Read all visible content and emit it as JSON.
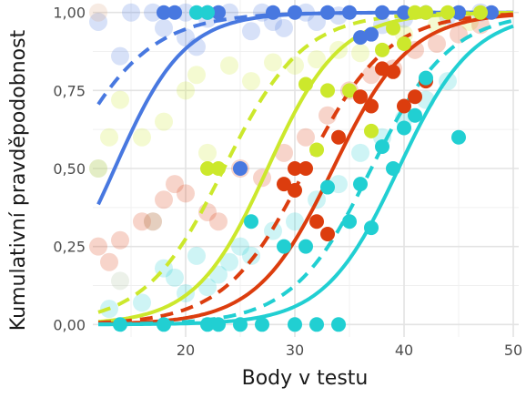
{
  "chart_data": {
    "type": "scatter",
    "title": "",
    "xlabel": "Body v testu",
    "ylabel": "Kumulativní pravděpodobnost",
    "xlim": [
      11.5,
      50.5
    ],
    "ylim": [
      -0.04,
      1.04
    ],
    "x_ticks": [
      20,
      30,
      40,
      50
    ],
    "x_tick_labels": [
      "20",
      "30",
      "40",
      "50"
    ],
    "y_ticks": [
      0,
      0.25,
      0.5,
      0.75,
      1
    ],
    "y_tick_labels": [
      "0,00",
      "0,25",
      "0,50",
      "0,75",
      "1,00"
    ],
    "grid": true,
    "legend": "none",
    "series": [
      {
        "color": "#4878e0",
        "curve_solid": {
          "mid": 13.5,
          "scale": 3.2
        },
        "curve_dashed": {
          "mid": 8.5,
          "scale": 4.0
        },
        "points_solid": [
          [
            18,
            1
          ],
          [
            19,
            1
          ],
          [
            22,
            1
          ],
          [
            23,
            1
          ],
          [
            25,
            0.5
          ],
          [
            28,
            1
          ],
          [
            30,
            1
          ],
          [
            33,
            1
          ],
          [
            35,
            1
          ],
          [
            36,
            0.92
          ],
          [
            37,
            0.93
          ],
          [
            38,
            1
          ],
          [
            40,
            1
          ],
          [
            42,
            1
          ],
          [
            45,
            1
          ],
          [
            48,
            1
          ]
        ],
        "points_faded": [
          [
            12,
            0.97
          ],
          [
            14,
            0.86
          ],
          [
            15,
            1
          ],
          [
            17,
            1
          ],
          [
            18,
            0.95
          ],
          [
            20,
            0.92
          ],
          [
            20,
            1
          ],
          [
            21,
            0.89
          ],
          [
            22,
            0.98
          ],
          [
            24,
            1
          ],
          [
            26,
            0.94
          ],
          [
            27,
            1
          ],
          [
            28,
            0.97
          ],
          [
            29,
            0.95
          ],
          [
            31,
            1
          ],
          [
            32,
            0.97
          ],
          [
            34,
            0.99
          ],
          [
            38,
            0.96
          ],
          [
            40,
            0.98
          ],
          [
            44,
            0.99
          ],
          [
            47,
            1
          ]
        ]
      },
      {
        "color": "#cce82c",
        "curve_solid": {
          "mid": 27.5,
          "scale": 3.3
        },
        "curve_dashed": {
          "mid": 23.5,
          "scale": 3.6
        },
        "points_solid": [
          [
            22,
            0.5
          ],
          [
            23,
            0.5
          ],
          [
            31,
            0.77
          ],
          [
            32,
            0.56
          ],
          [
            33,
            0.75
          ],
          [
            35,
            0.75
          ],
          [
            37,
            0.62
          ],
          [
            38,
            0.88
          ],
          [
            39,
            0.95
          ],
          [
            40,
            0.9
          ],
          [
            41,
            1
          ],
          [
            42,
            1
          ],
          [
            44,
            1
          ],
          [
            47,
            1
          ]
        ],
        "points_faded": [
          [
            12,
            0.5
          ],
          [
            13,
            0.6
          ],
          [
            14,
            0.72
          ],
          [
            16,
            0.6
          ],
          [
            18,
            0.65
          ],
          [
            20,
            0.75
          ],
          [
            21,
            0.8
          ],
          [
            22,
            0.55
          ],
          [
            24,
            0.83
          ],
          [
            26,
            0.78
          ],
          [
            28,
            0.84
          ],
          [
            30,
            0.83
          ],
          [
            32,
            0.85
          ],
          [
            34,
            0.88
          ],
          [
            36,
            0.87
          ],
          [
            40,
            0.93
          ],
          [
            43,
            0.96
          ],
          [
            46,
            0.97
          ]
        ]
      },
      {
        "color": "#dc3d0e",
        "curve_solid": {
          "mid": 33.5,
          "scale": 3.5
        },
        "curve_dashed": {
          "mid": 31.0,
          "scale": 3.7
        },
        "points_solid": [
          [
            29,
            0.45
          ],
          [
            30,
            0.5
          ],
          [
            30,
            0.43
          ],
          [
            31,
            0.5
          ],
          [
            32,
            0.33
          ],
          [
            33,
            0.29
          ],
          [
            34,
            0.6
          ],
          [
            36,
            0.73
          ],
          [
            37,
            0.7
          ],
          [
            38,
            0.82
          ],
          [
            39,
            0.81
          ],
          [
            40,
            0.7
          ],
          [
            41,
            0.73
          ],
          [
            42,
            0.78
          ]
        ],
        "points_faded": [
          [
            12,
            0.25
          ],
          [
            13,
            0.2
          ],
          [
            14,
            0.27
          ],
          [
            16,
            0.33
          ],
          [
            17,
            0.33
          ],
          [
            18,
            0.4
          ],
          [
            19,
            0.45
          ],
          [
            20,
            0.42
          ],
          [
            22,
            0.36
          ],
          [
            23,
            0.33
          ],
          [
            25,
            0.5
          ],
          [
            27,
            0.47
          ],
          [
            29,
            0.55
          ],
          [
            31,
            0.6
          ],
          [
            33,
            0.67
          ],
          [
            35,
            0.75
          ],
          [
            37,
            0.8
          ],
          [
            39,
            0.82
          ],
          [
            41,
            0.88
          ],
          [
            43,
            0.9
          ],
          [
            45,
            0.93
          ],
          [
            47,
            0.96
          ]
        ]
      },
      {
        "color": "#21cfd2",
        "curve_solid": {
          "mid": 39.5,
          "scale": 3.4
        },
        "curve_dashed": {
          "mid": 37.0,
          "scale": 3.6
        },
        "points_solid": [
          [
            14,
            0
          ],
          [
            18,
            0
          ],
          [
            22,
            0
          ],
          [
            23,
            0
          ],
          [
            25,
            0
          ],
          [
            27,
            0
          ],
          [
            30,
            0
          ],
          [
            32,
            0
          ],
          [
            34,
            0
          ],
          [
            26,
            0.33
          ],
          [
            29,
            0.25
          ],
          [
            31,
            0.25
          ],
          [
            33,
            0.44
          ],
          [
            35,
            0.33
          ],
          [
            36,
            0.45
          ],
          [
            37,
            0.31
          ],
          [
            38,
            0.57
          ],
          [
            39,
            0.5
          ],
          [
            40,
            0.63
          ],
          [
            41,
            0.67
          ],
          [
            42,
            0.79
          ],
          [
            45,
            0.6
          ],
          [
            21,
            1
          ],
          [
            22,
            1
          ]
        ],
        "points_faded": [
          [
            13,
            0.05
          ],
          [
            16,
            0.07
          ],
          [
            18,
            0.18
          ],
          [
            19,
            0.15
          ],
          [
            20,
            0.1
          ],
          [
            21,
            0.22
          ],
          [
            22,
            0.12
          ],
          [
            23,
            0.16
          ],
          [
            24,
            0.2
          ],
          [
            25,
            0.25
          ],
          [
            26,
            0.22
          ],
          [
            28,
            0.3
          ],
          [
            30,
            0.33
          ],
          [
            32,
            0.4
          ],
          [
            34,
            0.45
          ],
          [
            36,
            0.55
          ],
          [
            38,
            0.6
          ],
          [
            40,
            0.66
          ],
          [
            42,
            0.72
          ],
          [
            44,
            0.78
          ]
        ]
      }
    ],
    "extra_faded_points": [
      {
        "color": "#a9bf9a",
        "points": [
          [
            12,
            0.5
          ],
          [
            14,
            0.14
          ],
          [
            17,
            0.33
          ]
        ]
      },
      {
        "color": "#d9a37f",
        "points": [
          [
            12,
            1
          ]
        ]
      }
    ]
  }
}
